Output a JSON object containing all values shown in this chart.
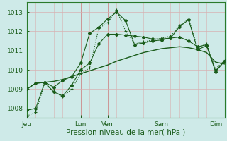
{
  "title": "Pression niveau de la mer( hPa )",
  "bg_color": "#ceeae8",
  "grid_color": "#d8b0b0",
  "line_color": "#1a5c1a",
  "ylim": [
    1007.5,
    1013.5
  ],
  "yticks": [
    1008,
    1009,
    1010,
    1011,
    1012,
    1013
  ],
  "xlim": [
    0,
    22
  ],
  "x_day_labels": [
    "Jeu",
    "Lun",
    "Ven",
    "Sam",
    "Dim"
  ],
  "x_day_positions": [
    0,
    6,
    9,
    15,
    21
  ],
  "series": {
    "dotted": [
      1007.6,
      1007.8,
      1009.3,
      1008.85,
      1008.6,
      1009.0,
      1009.8,
      1010.1,
      1012.15,
      1012.45,
      1013.1,
      1012.0,
      1011.35,
      1011.45,
      1011.55,
      1011.65,
      1011.75,
      1012.3,
      1012.65,
      1011.15,
      1011.35,
      1010.05,
      1010.5
    ],
    "smooth": [
      1009.0,
      1009.3,
      1009.35,
      1009.4,
      1009.5,
      1009.65,
      1009.8,
      1009.95,
      1010.1,
      1010.25,
      1010.45,
      1010.6,
      1010.75,
      1010.9,
      1011.0,
      1011.1,
      1011.15,
      1011.2,
      1011.15,
      1011.05,
      1010.9,
      1010.4,
      1010.3
    ],
    "jagged1": [
      1009.0,
      1009.3,
      1009.35,
      1008.85,
      1008.65,
      1009.2,
      1010.0,
      1010.35,
      1011.35,
      1011.85,
      1011.85,
      1011.8,
      1011.75,
      1011.7,
      1011.6,
      1011.6,
      1011.65,
      1011.7,
      1011.5,
      1011.2,
      1011.3,
      1009.9,
      1010.45
    ],
    "jagged2": [
      1007.9,
      1008.0,
      1009.35,
      1009.1,
      1009.45,
      1009.65,
      1010.35,
      1011.9,
      1012.2,
      1012.65,
      1013.0,
      1012.55,
      1011.3,
      1011.4,
      1011.5,
      1011.55,
      1011.65,
      1012.25,
      1012.6,
      1011.05,
      1011.25,
      1009.95,
      1010.45
    ]
  },
  "n_points": 23
}
